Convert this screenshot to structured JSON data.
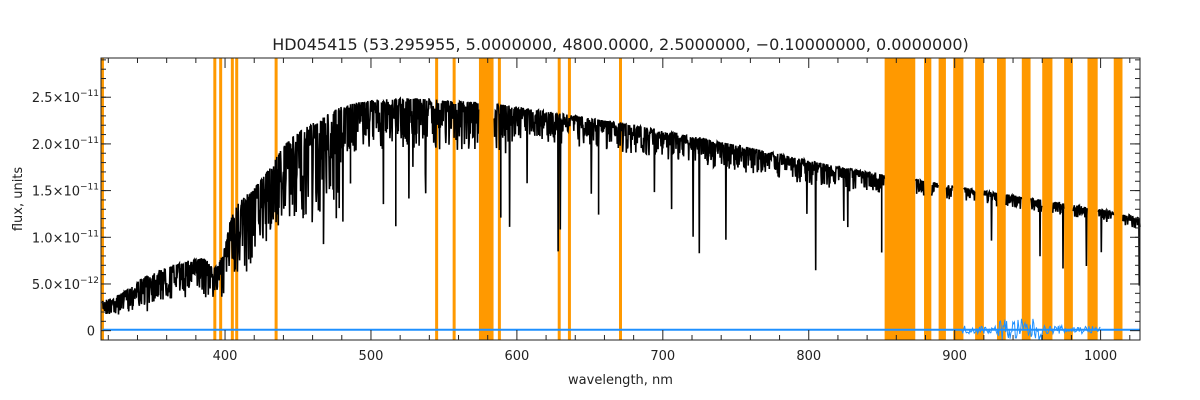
{
  "chart_data": {
    "type": "line",
    "title": "HD045415   (53.295955, 5.0000000, 4800.0000, 2.5000000, −0.10000000, 0.0000000)",
    "xlabel": "wavelength, nm",
    "ylabel": "flux, units",
    "xlim": [
      315,
      1027
    ],
    "ylim": [
      -1e-12,
      2.92e-11
    ],
    "x_ticks": [
      {
        "value": 400,
        "label": "400"
      },
      {
        "value": 500,
        "label": "500"
      },
      {
        "value": 600,
        "label": "600"
      },
      {
        "value": 700,
        "label": "700"
      },
      {
        "value": 800,
        "label": "800"
      },
      {
        "value": 900,
        "label": "900"
      },
      {
        "value": 1000,
        "label": "1000"
      }
    ],
    "y_ticks": [
      {
        "value": 0,
        "mantissa": "0",
        "exp": ""
      },
      {
        "value": 5e-12,
        "mantissa": "5.0×10",
        "exp": "−12"
      },
      {
        "value": 1e-11,
        "mantissa": "1.0×10",
        "exp": "−11"
      },
      {
        "value": 1.5e-11,
        "mantissa": "1.5×10",
        "exp": "−11"
      },
      {
        "value": 2e-11,
        "mantissa": "2.0×10",
        "exp": "−11"
      },
      {
        "value": 2.5e-11,
        "mantissa": "2.5×10",
        "exp": "−11"
      }
    ],
    "grid": false,
    "colors": {
      "flux": "#000000",
      "error": "#1e90ff",
      "mask": "#ff9900",
      "axis": "#222222"
    },
    "masked_lines": [
      316,
      393,
      397,
      405,
      408,
      435,
      545,
      557,
      588,
      629,
      636,
      671
    ],
    "masked_bands": [
      [
        574,
        584
      ],
      [
        852,
        873
      ],
      [
        879,
        884
      ],
      [
        889,
        894
      ],
      [
        899,
        906
      ],
      [
        914,
        920
      ],
      [
        929,
        935
      ],
      [
        946,
        952
      ],
      [
        960,
        967
      ],
      [
        975,
        981
      ],
      [
        991,
        998
      ],
      [
        1009,
        1015
      ]
    ],
    "series": [
      {
        "name": "flux",
        "x": [
          316,
          325,
          335,
          345,
          355,
          365,
          375,
          385,
          390,
          395,
          400,
          405,
          410,
          420,
          430,
          440,
          450,
          460,
          470,
          480,
          490,
          500,
          510,
          520,
          530,
          540,
          550,
          560,
          570,
          575,
          580,
          590,
          600,
          620,
          640,
          660,
          680,
          700,
          720,
          740,
          760,
          780,
          800,
          820,
          840,
          852,
          873,
          880,
          900,
          920,
          940,
          960,
          980,
          1000,
          1010,
          1020,
          1027
        ],
        "y": [
          3.2e-12,
          3.6e-12,
          4.6e-12,
          5.8e-12,
          6.5e-12,
          7e-12,
          7.5e-12,
          7.8e-12,
          7.2e-12,
          6.8e-12,
          9e-12,
          1.28e-11,
          1.38e-11,
          1.52e-11,
          1.72e-11,
          1.98e-11,
          2.12e-11,
          2.22e-11,
          2.32e-11,
          2.4e-11,
          2.44e-11,
          2.47e-11,
          2.48e-11,
          2.49e-11,
          2.49e-11,
          2.48e-11,
          2.47e-11,
          2.46e-11,
          2.45e-11,
          2.45e-11,
          2.44e-11,
          2.42e-11,
          2.4e-11,
          2.35e-11,
          2.3e-11,
          2.25e-11,
          2.2e-11,
          2.14e-11,
          2.08e-11,
          2.02e-11,
          1.96e-11,
          1.89e-11,
          1.82e-11,
          1.76e-11,
          1.7e-11,
          1.67e-11,
          1.62e-11,
          1.6e-11,
          1.55e-11,
          1.5e-11,
          1.45e-11,
          1.4e-11,
          1.35e-11,
          1.3e-11,
          1.27e-11,
          1.24e-11,
          1.2e-11
        ]
      },
      {
        "name": "error",
        "x": [
          316,
          1027
        ],
        "y": [
          1e-13,
          1e-13
        ]
      }
    ]
  }
}
